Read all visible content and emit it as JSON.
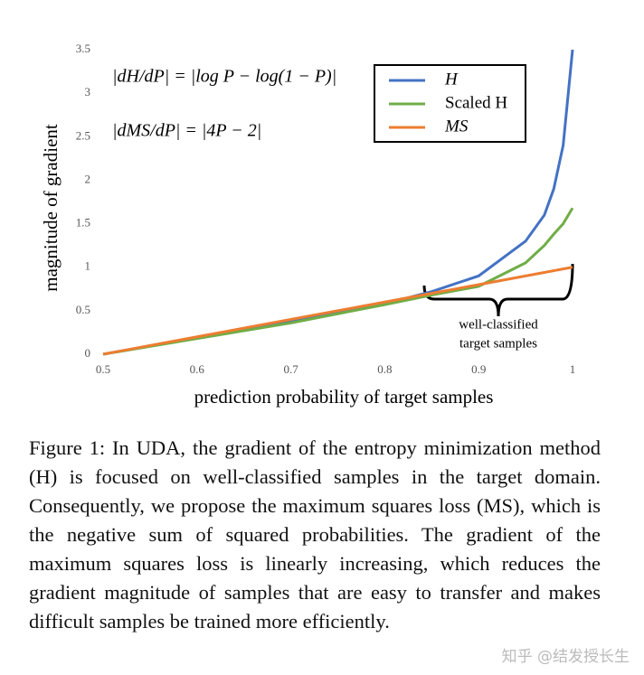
{
  "chart_data": {
    "type": "line",
    "xlabel": "prediction probability of target samples",
    "ylabel": "magnitude of gradient",
    "x": [
      0.5,
      0.6,
      0.7,
      0.8,
      0.85,
      0.9,
      0.95,
      0.97,
      0.98,
      0.99,
      1.0
    ],
    "series": [
      {
        "name": "H",
        "color": "#4472c4",
        "values": [
          0,
          0.19,
          0.38,
          0.58,
          0.72,
          0.9,
          1.3,
          1.6,
          1.9,
          2.4,
          3.5
        ]
      },
      {
        "name": "Scaled H",
        "color": "#70ad47",
        "values": [
          0,
          0.18,
          0.36,
          0.57,
          0.68,
          0.78,
          1.05,
          1.25,
          1.38,
          1.5,
          1.68
        ]
      },
      {
        "name": "MS",
        "color": "#ed7d31",
        "values": [
          0,
          0.2,
          0.4,
          0.6,
          0.7,
          0.8,
          0.9,
          0.94,
          0.96,
          0.98,
          1.0
        ]
      }
    ],
    "xlim": [
      0.5,
      1
    ],
    "xticks": [
      0.5,
      0.6,
      0.7,
      0.8,
      0.9,
      1
    ],
    "ylim": [
      0,
      3.5
    ],
    "yticks": [
      0,
      0.5,
      1,
      1.5,
      2,
      2.5,
      3,
      3.5
    ],
    "grid": false,
    "legend": "upper right",
    "annotations": [
      "|dH/dP| = |log P − log(1 − P)|",
      "|dMS/dP| = |4P − 2|",
      "well-classified",
      "target samples"
    ]
  },
  "caption": "Figure 1: In UDA, the gradient of the entropy minimization method (H) is focused on well-classified samples in the target domain. Consequently, we propose the maximum squares loss (MS), which is the negative sum of squared probabilities. The gradient of the maximum squares loss is linearly increasing, which reduces the gradient magnitude of samples that are easy to transfer and makes difficult samples be trained more efficiently.",
  "watermark": "知乎 @结发授长生"
}
